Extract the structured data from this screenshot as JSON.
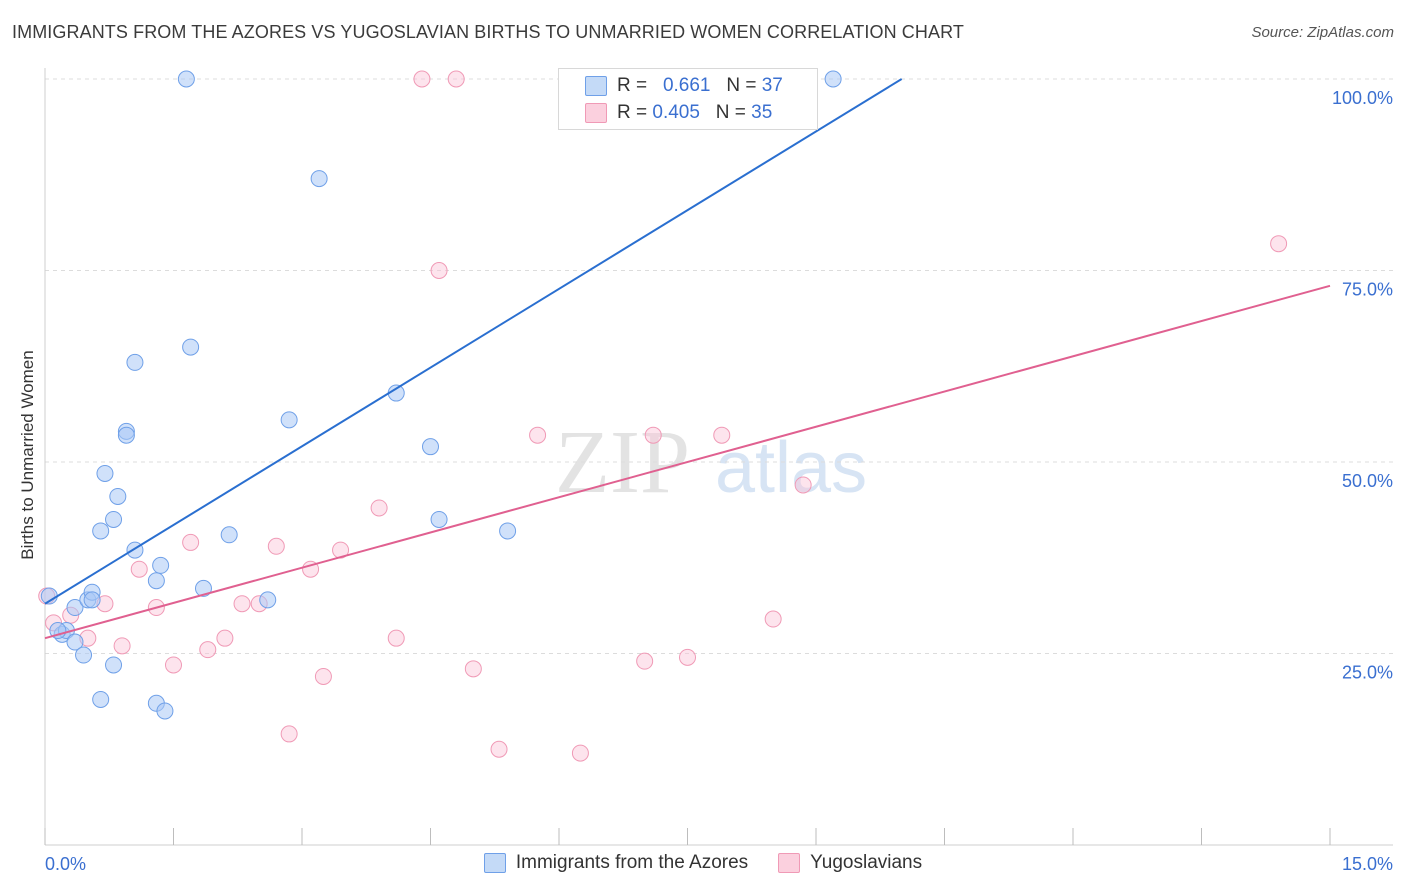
{
  "title": "IMMIGRANTS FROM THE AZORES VS YUGOSLAVIAN BIRTHS TO UNMARRIED WOMEN CORRELATION CHART",
  "source": "Source: ZipAtlas.com",
  "watermark": {
    "zip": "ZIP",
    "atlas": "atlas"
  },
  "legend": {
    "rows": [
      {
        "r_label": "R =",
        "r_value": "0.661",
        "n_label": "N =",
        "n_value": "37"
      },
      {
        "r_label": "R =",
        "r_value": "0.405",
        "n_label": "N =",
        "n_value": "35"
      }
    ]
  },
  "chart_data": {
    "type": "scatter",
    "title": "IMMIGRANTS FROM THE AZORES VS YUGOSLAVIAN BIRTHS TO UNMARRIED WOMEN CORRELATION CHART",
    "ylabel": "Births to Unmarried Women",
    "xlim": [
      0,
      15
    ],
    "ylim": [
      0,
      100
    ],
    "x_tick_labels": [
      "0.0%",
      "15.0%"
    ],
    "y_ticks": [
      25,
      50,
      75,
      100
    ],
    "y_tick_labels": [
      "25.0%",
      "50.0%",
      "75.0%",
      "100.0%"
    ],
    "grid": true,
    "legend_placement": "top-center",
    "colors": {
      "azores": "#6fa0e8",
      "yugoslavians": "#f09ab6",
      "azores_line": "#2a6fd0",
      "yugoslavians_line": "#e06090"
    },
    "series": [
      {
        "name": "Immigrants from the Azores",
        "r": 0.661,
        "n": 37,
        "trend": {
          "x": [
            0,
            10.0
          ],
          "y": [
            31.5,
            100
          ]
        },
        "points": [
          [
            0.05,
            32.5
          ],
          [
            0.2,
            27.5
          ],
          [
            0.35,
            31
          ],
          [
            0.5,
            32
          ],
          [
            0.55,
            33
          ],
          [
            0.25,
            28
          ],
          [
            0.35,
            26.5
          ],
          [
            0.55,
            32
          ],
          [
            0.45,
            24.8
          ],
          [
            0.65,
            19
          ],
          [
            0.65,
            41
          ],
          [
            0.8,
            42.5
          ],
          [
            0.7,
            48.5
          ],
          [
            0.85,
            45.5
          ],
          [
            0.8,
            23.5
          ],
          [
            0.95,
            54
          ],
          [
            0.95,
            53.5
          ],
          [
            1.05,
            38.5
          ],
          [
            1.05,
            63
          ],
          [
            1.3,
            34.5
          ],
          [
            1.35,
            36.5
          ],
          [
            1.3,
            18.5
          ],
          [
            1.4,
            17.5
          ],
          [
            1.65,
            100
          ],
          [
            1.7,
            65
          ],
          [
            1.85,
            33.5
          ],
          [
            2.15,
            40.5
          ],
          [
            2.6,
            32
          ],
          [
            2.85,
            55.5
          ],
          [
            3.2,
            87
          ],
          [
            4.1,
            59
          ],
          [
            4.5,
            52
          ],
          [
            4.6,
            42.5
          ],
          [
            5.4,
            41
          ],
          [
            8.45,
            100
          ],
          [
            9.2,
            100
          ],
          [
            0.15,
            28
          ]
        ]
      },
      {
        "name": "Yugoslavians",
        "r": 0.405,
        "n": 35,
        "trend": {
          "x": [
            0,
            15
          ],
          "y": [
            27,
            73
          ]
        },
        "points": [
          [
            0.02,
            32.5
          ],
          [
            0.1,
            29
          ],
          [
            0.3,
            30
          ],
          [
            0.5,
            27
          ],
          [
            0.7,
            31.5
          ],
          [
            0.9,
            26
          ],
          [
            1.1,
            36
          ],
          [
            1.3,
            31
          ],
          [
            1.5,
            23.5
          ],
          [
            1.7,
            39.5
          ],
          [
            1.9,
            25.5
          ],
          [
            2.1,
            27
          ],
          [
            2.3,
            31.5
          ],
          [
            2.5,
            31.5
          ],
          [
            2.7,
            39
          ],
          [
            2.85,
            14.5
          ],
          [
            3.1,
            36
          ],
          [
            3.25,
            22
          ],
          [
            3.45,
            38.5
          ],
          [
            3.9,
            44
          ],
          [
            4.1,
            27
          ],
          [
            4.4,
            100
          ],
          [
            4.6,
            75
          ],
          [
            4.8,
            100
          ],
          [
            5.0,
            23
          ],
          [
            5.3,
            12.5
          ],
          [
            5.75,
            53.5
          ],
          [
            6.25,
            12
          ],
          [
            7.0,
            24
          ],
          [
            7.1,
            53.5
          ],
          [
            7.5,
            24.5
          ],
          [
            7.9,
            53.5
          ],
          [
            8.5,
            29.5
          ],
          [
            8.85,
            47
          ],
          [
            14.4,
            78.5
          ]
        ]
      }
    ]
  }
}
